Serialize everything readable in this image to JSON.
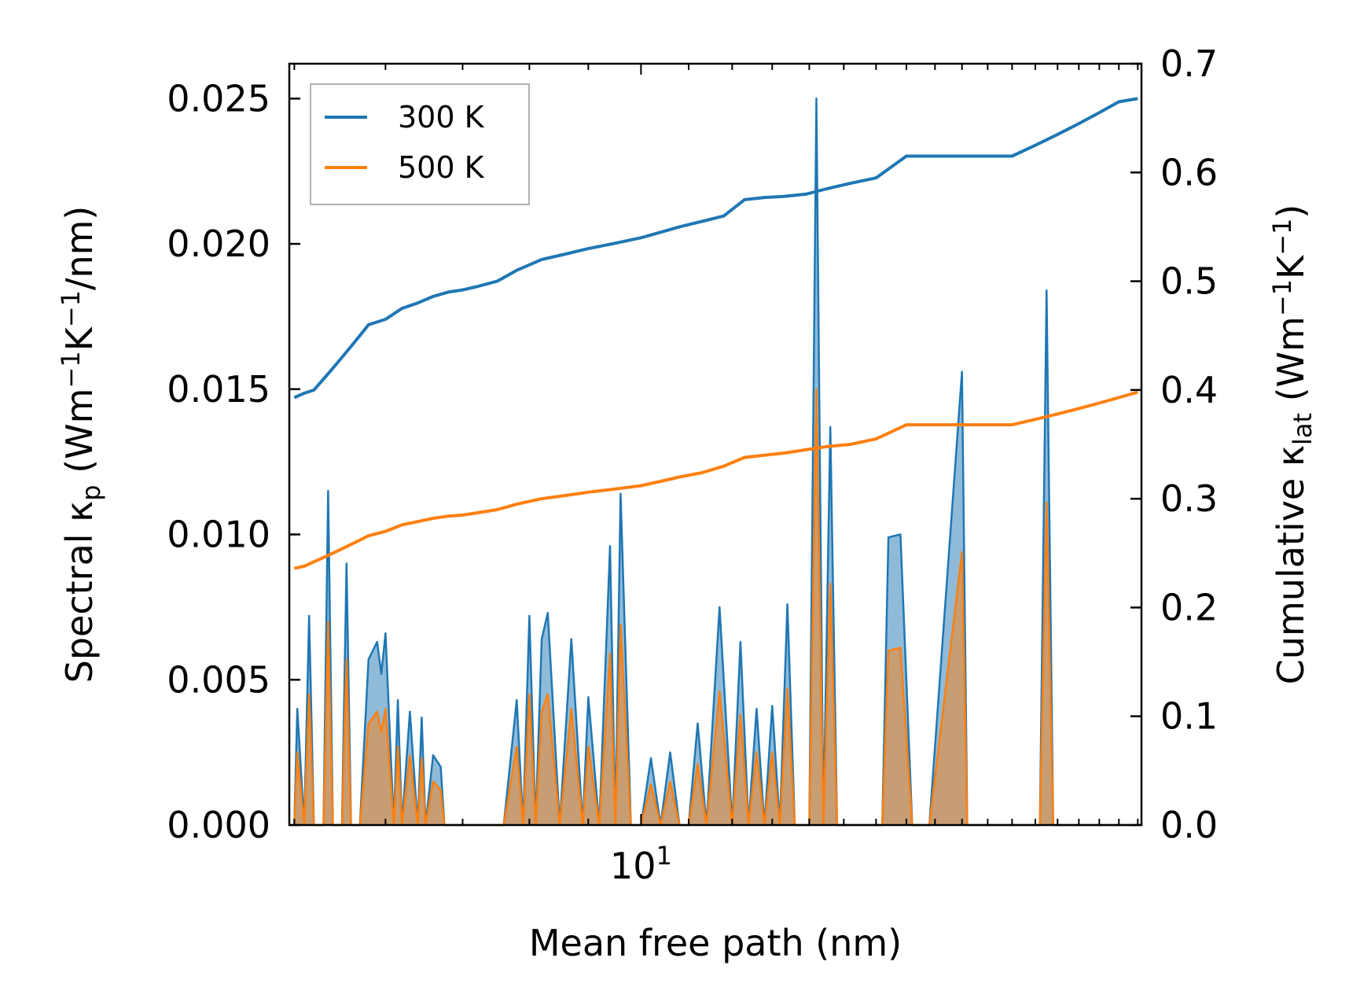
{
  "chart_data": {
    "type": "line",
    "title": "",
    "xlabel": "Mean free path (nm)",
    "xscale": "log",
    "xlim": [
      4.95,
      27.2
    ],
    "x_ticks": [
      {
        "value": 10,
        "base": "10",
        "exp": "1"
      }
    ],
    "ylabel_left": {
      "pre": "Spectral κ",
      "sub": "p",
      "post": " (Wm",
      "sup1": "−1",
      "mid": "K",
      "sup2": "−1",
      "tail": "/nm)"
    },
    "ylabel_right": {
      "pre": "Cumulative κ",
      "sub": "lat",
      "post": " (Wm",
      "sup1": "−1",
      "mid": "K",
      "sup2": "−1",
      "tail": ")"
    },
    "ylim_left": [
      0,
      0.0262
    ],
    "ylim_right": [
      0,
      0.7
    ],
    "yticks_left": [
      "0.000",
      "0.005",
      "0.010",
      "0.015",
      "0.020",
      "0.025"
    ],
    "yticks_left_values": [
      0,
      0.005,
      0.01,
      0.015,
      0.02,
      0.025
    ],
    "yticks_right": [
      "0.0",
      "0.1",
      "0.2",
      "0.3",
      "0.4",
      "0.5",
      "0.6",
      "0.7"
    ],
    "yticks_right_values": [
      0,
      0.1,
      0.2,
      0.3,
      0.4,
      0.5,
      0.6,
      0.7
    ],
    "legend": {
      "position": "upper-left",
      "entries": [
        "300 K",
        "500 K"
      ]
    },
    "colors": {
      "300 K": "#1f77b4",
      "500 K": "#ff7f0e"
    },
    "series": [
      {
        "name": "300 K",
        "role": "cumulative",
        "axis": "right",
        "x": [
          5.0,
          5.1,
          5.2,
          5.3,
          5.4,
          5.5,
          5.6,
          5.7,
          5.8,
          6.0,
          6.1,
          6.2,
          6.4,
          6.6,
          6.8,
          7.0,
          7.2,
          7.5,
          7.8,
          8.2,
          8.6,
          9.0,
          9.5,
          10.0,
          10.4,
          10.8,
          11.3,
          11.8,
          12.3,
          12.8,
          13.3,
          13.9,
          14.5,
          15.2,
          16.0,
          17.0,
          18.0,
          19.0,
          20.0,
          21.0,
          22.0,
          23.0,
          24.0,
          25.0,
          26.0,
          27.0
        ],
        "y": [
          0.393,
          0.397,
          0.4,
          0.41,
          0.42,
          0.43,
          0.44,
          0.45,
          0.46,
          0.465,
          0.47,
          0.475,
          0.48,
          0.486,
          0.49,
          0.492,
          0.495,
          0.5,
          0.51,
          0.52,
          0.525,
          0.53,
          0.535,
          0.54,
          0.545,
          0.55,
          0.555,
          0.56,
          0.575,
          0.577,
          0.578,
          0.58,
          0.585,
          0.59,
          0.595,
          0.615,
          0.615,
          0.615,
          0.615,
          0.615,
          0.625,
          0.635,
          0.645,
          0.655,
          0.665,
          0.668
        ]
      },
      {
        "name": "500 K",
        "role": "cumulative",
        "axis": "right",
        "x": [
          5.0,
          5.1,
          5.2,
          5.3,
          5.4,
          5.5,
          5.6,
          5.7,
          5.8,
          6.0,
          6.1,
          6.2,
          6.4,
          6.6,
          6.8,
          7.0,
          7.2,
          7.5,
          7.8,
          8.2,
          8.6,
          9.0,
          9.5,
          10.0,
          10.4,
          10.8,
          11.3,
          11.8,
          12.3,
          12.8,
          13.3,
          13.9,
          14.5,
          15.2,
          16.0,
          17.0,
          18.0,
          19.0,
          20.0,
          21.0,
          22.0,
          23.0,
          24.0,
          25.0,
          26.0,
          27.0
        ],
        "y": [
          0.236,
          0.238,
          0.242,
          0.246,
          0.25,
          0.254,
          0.258,
          0.262,
          0.266,
          0.27,
          0.273,
          0.276,
          0.279,
          0.282,
          0.284,
          0.285,
          0.287,
          0.29,
          0.295,
          0.3,
          0.303,
          0.306,
          0.309,
          0.312,
          0.316,
          0.32,
          0.324,
          0.33,
          0.338,
          0.34,
          0.342,
          0.345,
          0.348,
          0.35,
          0.355,
          0.368,
          0.368,
          0.368,
          0.368,
          0.368,
          0.373,
          0.378,
          0.383,
          0.388,
          0.393,
          0.398
        ]
      },
      {
        "name": "300 K spectral",
        "role": "spectral",
        "axis": "left",
        "x": [
          5.0,
          5.03,
          5.1,
          5.15,
          5.2,
          5.3,
          5.35,
          5.4,
          5.5,
          5.55,
          5.6,
          5.7,
          5.8,
          5.9,
          5.95,
          6.0,
          6.1,
          6.15,
          6.2,
          6.3,
          6.4,
          6.45,
          6.5,
          6.6,
          6.7,
          6.75,
          6.8,
          6.85,
          6.9,
          7.0,
          7.1,
          7.6,
          7.8,
          7.9,
          8.0,
          8.1,
          8.2,
          8.3,
          8.5,
          8.7,
          8.9,
          9.0,
          9.2,
          9.4,
          9.5,
          9.6,
          9.8,
          10.0,
          10.2,
          10.4,
          10.6,
          10.8,
          11.0,
          11.2,
          11.4,
          11.7,
          12.0,
          12.2,
          12.4,
          12.6,
          12.8,
          13.0,
          13.2,
          13.4,
          13.6,
          13.8,
          14.0,
          14.2,
          14.4,
          14.6,
          14.8,
          16.2,
          16.4,
          16.8,
          17.2,
          17.5,
          17.8,
          19.0,
          19.2,
          19.5,
          22.0,
          22.2,
          22.5,
          22.8,
          24.5,
          24.8,
          25.2,
          26.5,
          26.8,
          27.0
        ],
        "y": [
          0,
          0.004,
          0,
          0.0072,
          0,
          0,
          0.0115,
          0,
          0,
          0.009,
          0,
          0,
          0.0057,
          0.0063,
          0.0052,
          0.0066,
          0,
          0.0043,
          0,
          0.0039,
          0,
          0.0037,
          0,
          0.0024,
          0.002,
          0,
          0,
          0,
          0,
          0,
          0,
          0,
          0.0043,
          0,
          0.0072,
          0,
          0.0064,
          0.0073,
          0,
          0.0064,
          0,
          0.0044,
          0,
          0.0096,
          0,
          0.0114,
          0,
          0,
          0.0023,
          0,
          0.0025,
          0,
          0,
          0.0035,
          0,
          0.0075,
          0,
          0.0063,
          0,
          0.004,
          0,
          0.0041,
          0,
          0.0076,
          0,
          0,
          0,
          0.025,
          0,
          0.0137,
          0,
          0,
          0.0099,
          0.01,
          0,
          0,
          0,
          0.0156,
          0,
          0,
          0,
          0,
          0.0184,
          0,
          0,
          0,
          0,
          0,
          0,
          0
        ]
      },
      {
        "name": "500 K spectral",
        "role": "spectral",
        "axis": "left",
        "x": [
          5.0,
          5.03,
          5.1,
          5.15,
          5.2,
          5.3,
          5.35,
          5.4,
          5.5,
          5.55,
          5.6,
          5.7,
          5.8,
          5.9,
          5.95,
          6.0,
          6.1,
          6.15,
          6.2,
          6.3,
          6.4,
          6.45,
          6.5,
          6.6,
          6.7,
          6.75,
          6.8,
          6.85,
          6.9,
          7.0,
          7.1,
          7.6,
          7.8,
          7.9,
          8.0,
          8.1,
          8.2,
          8.3,
          8.5,
          8.7,
          8.9,
          9.0,
          9.2,
          9.4,
          9.5,
          9.6,
          9.8,
          10.0,
          10.2,
          10.4,
          10.6,
          10.8,
          11.0,
          11.2,
          11.4,
          11.7,
          12.0,
          12.2,
          12.4,
          12.6,
          12.8,
          13.0,
          13.2,
          13.4,
          13.6,
          13.8,
          14.0,
          14.2,
          14.4,
          14.6,
          14.8,
          16.2,
          16.4,
          16.8,
          17.2,
          17.5,
          17.8,
          19.0,
          19.2,
          19.5,
          22.0,
          22.2,
          22.5,
          22.8,
          24.5,
          24.8,
          25.2,
          26.5,
          26.8,
          27.0
        ],
        "y": [
          0,
          0.0025,
          0,
          0.0045,
          0,
          0,
          0.007,
          0,
          0,
          0.0057,
          0,
          0,
          0.0035,
          0.0039,
          0.0032,
          0.004,
          0,
          0.0027,
          0,
          0.0024,
          0,
          0.0023,
          0,
          0.0015,
          0.0012,
          0,
          0,
          0,
          0,
          0,
          0,
          0,
          0.0027,
          0,
          0.0045,
          0,
          0.0039,
          0.0045,
          0,
          0.004,
          0,
          0.0027,
          0,
          0.0059,
          0,
          0.0069,
          0,
          0,
          0.0014,
          0,
          0.0015,
          0,
          0,
          0.0021,
          0,
          0.0046,
          0,
          0.0038,
          0,
          0.0025,
          0,
          0.0025,
          0,
          0.0047,
          0,
          0,
          0,
          0.015,
          0,
          0.0083,
          0,
          0,
          0.006,
          0.0061,
          0,
          0,
          0,
          0.0094,
          0,
          0,
          0,
          0,
          0.0111,
          0,
          0,
          0,
          0,
          0,
          0,
          0
        ]
      }
    ]
  }
}
